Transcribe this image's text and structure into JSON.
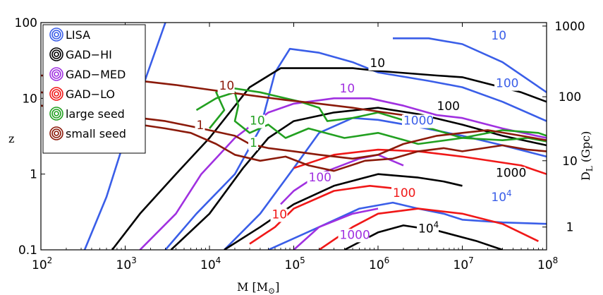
{
  "chart_data": {
    "type": "contour",
    "xlabel": "M [M",
    "xlabel_sub": "⊙",
    "xlabel_close": "]",
    "ylabel": "z",
    "y2label": "D",
    "y2label_sub": "L",
    "y2label_unit": " (Gpc)",
    "xscale": "log",
    "yscale": "log",
    "xlim": [
      100,
      100000000
    ],
    "ylim": [
      0.1,
      100
    ],
    "x_ticks": [
      {
        "value": 100,
        "base": "10",
        "exp": "2"
      },
      {
        "value": 1000,
        "base": "10",
        "exp": "3"
      },
      {
        "value": 10000,
        "base": "10",
        "exp": "4"
      },
      {
        "value": 100000,
        "base": "10",
        "exp": "5"
      },
      {
        "value": 1000000,
        "base": "10",
        "exp": "6"
      },
      {
        "value": 10000000,
        "base": "10",
        "exp": "7"
      },
      {
        "value": 100000000,
        "base": "10",
        "exp": "8"
      }
    ],
    "y_ticks": [
      {
        "value": 0.1,
        "label": "0.1"
      },
      {
        "value": 1,
        "label": "1"
      },
      {
        "value": 10,
        "label": "10"
      },
      {
        "value": 100,
        "label": "100"
      }
    ],
    "y2_ticks": [
      {
        "z": 0.2,
        "label": "1"
      },
      {
        "z": 1.5,
        "label": "10"
      },
      {
        "z": 10.5,
        "label": "100"
      },
      {
        "z": 90,
        "label": "1000"
      }
    ],
    "legend": [
      {
        "name": "LISA",
        "color": "#3a5ee8"
      },
      {
        "name": "GAD−HI",
        "color": "#000000"
      },
      {
        "name": "GAD−MED",
        "color": "#a030e0"
      },
      {
        "name": "GAD−LO",
        "color": "#f01818"
      },
      {
        "name": "large seed",
        "color": "#22a020"
      },
      {
        "name": "small seed",
        "color": "#8b1a0a"
      }
    ],
    "series": [
      {
        "name": "LISA SNR 10",
        "color": "#3a5ee8",
        "points": [
          [
            330,
            0.1
          ],
          [
            600,
            0.5
          ],
          [
            1000,
            3
          ],
          [
            1800,
            20
          ],
          [
            3000,
            100
          ]
        ]
      },
      {
        "name": "LISA SNR 10 right",
        "color": "#3a5ee8",
        "points": [
          [
            1500000.0,
            62
          ],
          [
            4000000.0,
            62
          ],
          [
            10000000.0,
            52
          ],
          [
            30000000.0,
            30
          ],
          [
            100000000.0,
            12
          ]
        ]
      },
      {
        "name": "LISA SNR 100",
        "color": "#3a5ee8",
        "points": [
          [
            3000.0,
            0.1
          ],
          [
            7000.0,
            0.3
          ],
          [
            20000.0,
            1
          ],
          [
            40000.0,
            4
          ],
          [
            60000.0,
            22
          ],
          [
            90000.0,
            45
          ],
          [
            200000.0,
            40
          ],
          [
            500000.0,
            30
          ],
          [
            1000000.0,
            22
          ],
          [
            4000000.0,
            17
          ],
          [
            10000000.0,
            14
          ],
          [
            30000000.0,
            9
          ],
          [
            100000000.0,
            5
          ]
        ]
      },
      {
        "name": "LISA SNR 1000",
        "color": "#3a5ee8",
        "points": [
          [
            15000.0,
            0.1
          ],
          [
            40000.0,
            0.3
          ],
          [
            100000.0,
            1.2
          ],
          [
            200000.0,
            3.5
          ],
          [
            500000.0,
            5.5
          ],
          [
            1000000.0,
            5.2
          ],
          [
            3000000.0,
            4.2
          ],
          [
            10000000.0,
            3.2
          ],
          [
            30000000.0,
            2.4
          ],
          [
            100000000.0,
            1.7
          ]
        ]
      },
      {
        "name": "LISA SNR 10^4",
        "color": "#3a5ee8",
        "points": [
          [
            50000.0,
            0.1
          ],
          [
            200000.0,
            0.2
          ],
          [
            600000.0,
            0.35
          ],
          [
            1500000.0,
            0.42
          ],
          [
            3000000.0,
            0.35
          ],
          [
            6000000.0,
            0.3
          ],
          [
            10000000.0,
            0.25
          ],
          [
            30000000.0,
            0.23
          ],
          [
            100000000.0,
            0.22
          ]
        ]
      },
      {
        "name": "GAD-HI 10",
        "color": "#000000",
        "points": [
          [
            700,
            0.1
          ],
          [
            1500,
            0.3
          ],
          [
            4000.0,
            1
          ],
          [
            10000.0,
            3
          ],
          [
            30000.0,
            14
          ],
          [
            70000.0,
            25
          ],
          [
            200000.0,
            25
          ],
          [
            500000.0,
            25
          ],
          [
            1000000.0,
            23
          ],
          [
            5000000.0,
            20
          ],
          [
            10000000.0,
            19
          ],
          [
            50000000.0,
            12
          ],
          [
            100000000.0,
            9
          ]
        ]
      },
      {
        "name": "GAD-HI 100",
        "color": "#000000",
        "points": [
          [
            3500.0,
            0.1
          ],
          [
            10000.0,
            0.3
          ],
          [
            25000.0,
            1.2
          ],
          [
            50000.0,
            3
          ],
          [
            100000.0,
            5
          ],
          [
            300000.0,
            6.5
          ],
          [
            1000000.0,
            7.5
          ],
          [
            3000000.0,
            6.2
          ],
          [
            10000000.0,
            4.5
          ],
          [
            30000000.0,
            3.2
          ],
          [
            100000000.0,
            2.4
          ]
        ]
      },
      {
        "name": "GAD-HI 1000",
        "color": "#000000",
        "points": [
          [
            15000.0,
            0.1
          ],
          [
            40000.0,
            0.2
          ],
          [
            100000.0,
            0.4
          ],
          [
            300000.0,
            0.7
          ],
          [
            1000000.0,
            1.0
          ],
          [
            3000000.0,
            0.9
          ],
          [
            6000000.0,
            0.8
          ],
          [
            10000000.0,
            0.7
          ]
        ]
      },
      {
        "name": "GAD-HI 10^4",
        "color": "#000000",
        "points": [
          [
            400000.0,
            0.1
          ],
          [
            1000000.0,
            0.17
          ],
          [
            2000000.0,
            0.21
          ],
          [
            5000000.0,
            0.18
          ],
          [
            15000000.0,
            0.13
          ],
          [
            30000000.0,
            0.1
          ]
        ]
      },
      {
        "name": "GAD-MED 10",
        "color": "#a030e0",
        "points": [
          [
            1500.0,
            0.1
          ],
          [
            4000.0,
            0.3
          ],
          [
            8000.0,
            1
          ],
          [
            20000.0,
            3
          ],
          [
            50000.0,
            6.5
          ],
          [
            100000.0,
            8.5
          ],
          [
            300000.0,
            10
          ],
          [
            800000.0,
            10
          ],
          [
            2000000.0,
            8
          ],
          [
            5000000.0,
            6
          ],
          [
            10000000.0,
            5.5
          ],
          [
            30000000.0,
            4
          ],
          [
            100000000.0,
            3
          ]
        ]
      },
      {
        "name": "GAD-MED 100",
        "color": "#a030e0",
        "points": [
          [
            70000.0,
            0.4
          ],
          [
            100000.0,
            0.6
          ],
          [
            200000.0,
            1
          ],
          [
            600000.0,
            1.6
          ],
          [
            1000000.0,
            1.8
          ],
          [
            2000000.0,
            1.3
          ]
        ]
      },
      {
        "name": "GAD-MED 1000",
        "color": "#a030e0",
        "points": [
          [
            100000.0,
            0.1
          ],
          [
            200000.0,
            0.2
          ],
          [
            500000.0,
            0.3
          ],
          [
            1000000.0,
            0.35
          ]
        ]
      },
      {
        "name": "GAD-LO 10",
        "color": "#f01818",
        "points": [
          [
            30000.0,
            0.12
          ],
          [
            60000.0,
            0.2
          ],
          [
            100000.0,
            0.35
          ],
          [
            300000.0,
            0.6
          ],
          [
            800000.0,
            0.7
          ],
          [
            1500000.0,
            0.65
          ],
          [
            2500000.0,
            0.52
          ]
        ]
      },
      {
        "name": "GAD-LO 100",
        "color": "#f01818",
        "points": [
          [
            200000.0,
            0.1
          ],
          [
            500000.0,
            0.2
          ],
          [
            1000000.0,
            0.3
          ],
          [
            3000000.0,
            0.35
          ],
          [
            10000000.0,
            0.3
          ],
          [
            30000000.0,
            0.22
          ],
          [
            80000000.0,
            0.13
          ]
        ]
      },
      {
        "name": "GAD-LO 1000",
        "color": "#f01818",
        "points": [
          [
            100000.0,
            1.2
          ],
          [
            300000.0,
            1.8
          ],
          [
            1000000.0,
            2.1
          ],
          [
            3000000.0,
            2.0
          ],
          [
            10000000.0,
            1.7
          ],
          [
            50000000.0,
            1.3
          ],
          [
            100000000.0,
            1.0
          ]
        ]
      },
      {
        "name": "large seed 1",
        "color": "#22a020",
        "points": [
          [
            7000.0,
            7
          ],
          [
            12000.0,
            10
          ],
          [
            20000.0,
            12
          ],
          [
            22000.0,
            8
          ],
          [
            20000.0,
            5
          ],
          [
            30000.0,
            3.5
          ],
          [
            50000.0,
            4.5
          ],
          [
            80000.0,
            3
          ],
          [
            150000.0,
            4
          ],
          [
            400000.0,
            3
          ],
          [
            1000000.0,
            3.5
          ],
          [
            3000000.0,
            2.5
          ],
          [
            10000000.0,
            3
          ],
          [
            30000000.0,
            3.8
          ],
          [
            80000000.0,
            3.5
          ],
          [
            100000000.0,
            3.2
          ]
        ]
      },
      {
        "name": "large seed 10",
        "color": "#22a020",
        "points": [
          [
            10000.0,
            4
          ],
          [
            15000.0,
            7
          ],
          [
            12000.0,
            12
          ],
          [
            16000.0,
            14
          ],
          [
            40000.0,
            12
          ],
          [
            80000.0,
            10
          ],
          [
            120000.0,
            9
          ],
          [
            200000.0,
            7.5
          ],
          [
            250000.0,
            5
          ],
          [
            500000.0,
            5.5
          ],
          [
            1000000.0,
            6.5
          ],
          [
            3000000.0,
            4.5
          ],
          [
            10000000.0,
            3
          ],
          [
            30000000.0,
            2.8
          ],
          [
            60000000.0,
            3
          ],
          [
            100000000.0,
            2.7
          ]
        ]
      },
      {
        "name": "small seed 1",
        "color": "#8b1a0a",
        "points": [
          [
            100,
            12
          ],
          [
            200,
            11
          ],
          [
            400,
            8
          ],
          [
            800,
            6
          ],
          [
            1500.0,
            4.5
          ],
          [
            3000.0,
            4
          ],
          [
            6000.0,
            3.5
          ],
          [
            12000.0,
            2.5
          ],
          [
            20000.0,
            1.8
          ],
          [
            40000.0,
            1.5
          ],
          [
            80000.0,
            1.7
          ],
          [
            150000.0,
            1.3
          ],
          [
            300000.0,
            1.1
          ],
          [
            700000.0,
            1.5
          ],
          [
            1500000.0,
            1.6
          ],
          [
            3000000.0,
            2.0
          ],
          [
            6000000.0,
            2.2
          ],
          [
            10000000.0,
            2.0
          ],
          [
            30000000.0,
            2.4
          ],
          [
            60000000.0,
            2.1
          ],
          [
            100000000.0,
            2.0
          ]
        ]
      },
      {
        "name": "small seed 10",
        "color": "#8b1a0a",
        "points": [
          [
            100,
            8
          ],
          [
            300,
            7
          ],
          [
            700,
            6
          ],
          [
            1500.0,
            5.5
          ],
          [
            3000.0,
            5
          ],
          [
            8000.0,
            4
          ],
          [
            20000.0,
            3.2
          ],
          [
            30000.0,
            2.5
          ],
          [
            50000.0,
            2.2
          ],
          [
            100000.0,
            2.0
          ],
          [
            200000.0,
            1.8
          ],
          [
            500000.0,
            1.6
          ],
          [
            1000000.0,
            1.8
          ],
          [
            2000000.0,
            2.5
          ],
          [
            5000000.0,
            3.2
          ],
          [
            10000000.0,
            3.5
          ],
          [
            20000000.0,
            3.8
          ],
          [
            50000000.0,
            3.2
          ],
          [
            100000000.0,
            2.8
          ]
        ]
      },
      {
        "name": "small seed upper",
        "color": "#8b1a0a",
        "points": [
          [
            100,
            20
          ],
          [
            500,
            20
          ],
          [
            1500.0,
            17
          ],
          [
            4000.0,
            15
          ],
          [
            10000.0,
            13
          ],
          [
            30000.0,
            11
          ],
          [
            80000.0,
            9.5
          ],
          [
            200000.0,
            8.5
          ],
          [
            500000.0,
            7.5
          ],
          [
            1200000.0,
            6.5
          ],
          [
            2000000.0,
            6.0
          ]
        ]
      }
    ],
    "contour_labels": [
      {
        "text": "10",
        "x": 22000000.0,
        "y": 60,
        "color": "#3a5ee8"
      },
      {
        "text": "100",
        "x": 25000000.0,
        "y": 14,
        "color": "#3a5ee8"
      },
      {
        "text": "1000",
        "x": 2000000.0,
        "y": 4.5,
        "color": "#3a5ee8"
      },
      {
        "text": "10",
        "sup": "4",
        "x": 22000000.0,
        "y": 0.44,
        "color": "#3a5ee8"
      },
      {
        "text": "10",
        "x": 800000.0,
        "y": 26,
        "color": "#000000"
      },
      {
        "text": "100",
        "x": 5000000.0,
        "y": 7,
        "color": "#000000"
      },
      {
        "text": "1000",
        "x": 25000000.0,
        "y": 0.92,
        "color": "#000000"
      },
      {
        "text": "10",
        "sup": "4",
        "x": 3000000.0,
        "y": 0.17,
        "color": "#000000"
      },
      {
        "text": "10",
        "x": 350000.0,
        "y": 12,
        "color": "#a030e0"
      },
      {
        "text": "100",
        "x": 150000.0,
        "y": 0.8,
        "color": "#a030e0"
      },
      {
        "text": "1000",
        "x": 350000.0,
        "y": 0.14,
        "color": "#a030e0"
      },
      {
        "text": "10",
        "x": 55000.0,
        "y": 0.26,
        "color": "#f01818"
      },
      {
        "text": "100",
        "x": 1500000.0,
        "y": 0.5,
        "color": "#f01818"
      },
      {
        "text": "10",
        "x": 30000.0,
        "y": 4.5,
        "color": "#22a020"
      },
      {
        "text": "1",
        "x": 30000.0,
        "y": 2.3,
        "color": "#22a020"
      },
      {
        "text": "10",
        "x": 13000.0,
        "y": 13,
        "color": "#8b1a0a"
      },
      {
        "text": "1",
        "x": 7000.0,
        "y": 3.9,
        "color": "#8b1a0a"
      }
    ]
  }
}
